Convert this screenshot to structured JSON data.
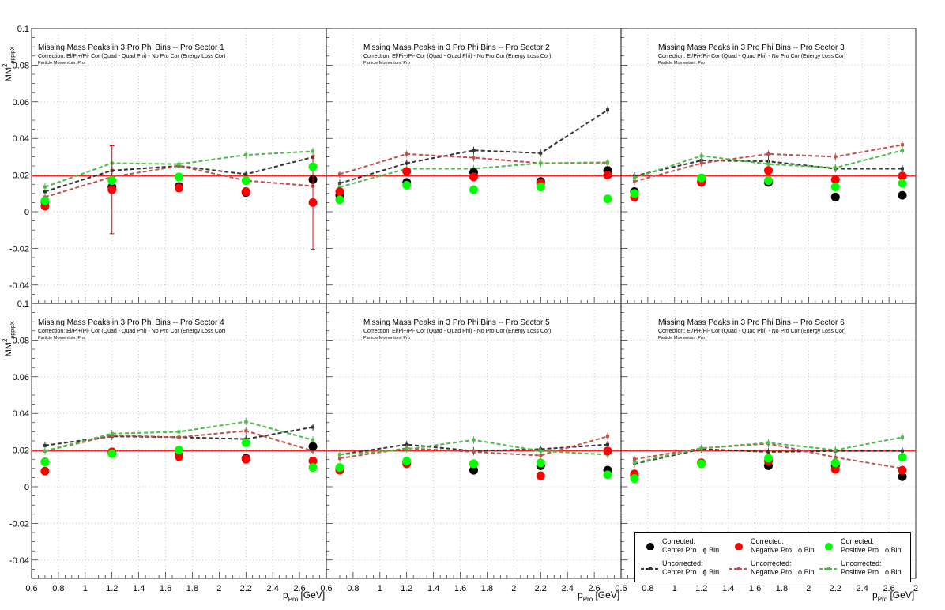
{
  "chart_data": {
    "type": "scatter",
    "panel_title_prefix": "Missing Mass Peaks in 3 Pro Phi Bins -- Pro Sector ",
    "subtitle1": "Correction: El/Pi+/Pi- Cor (Quad - Quad Phi) - No Pro Cor (Energy Loss Cor)",
    "subtitle2": "Particle Momentum: Pro",
    "ylabel_main": "MM",
    "ylabel_sup": "2",
    "ylabel_sub": "eppipX",
    "xlabel_main": "p",
    "xlabel_sub": "Pro",
    "xlabel_unit": "[GeV]",
    "xlim": [
      0.6,
      2.8
    ],
    "ylim": [
      -0.05,
      0.1
    ],
    "y_ticks": [
      "0.08",
      "0.06",
      "0.04",
      "0.02",
      "0",
      "-0.02",
      "-0.04"
    ],
    "y_top_tick": "0.1",
    "x_ticks": [
      "0.6",
      "0.8",
      "1",
      "1.2",
      "1.4",
      "1.6",
      "1.8",
      "2",
      "2.2",
      "2.4",
      "2.6"
    ],
    "x_ticks_last": [
      "0.6",
      "0.8",
      "1",
      "1.2",
      "1.4",
      "1.6",
      "1.8",
      "2",
      "2.2",
      "2.4",
      "2.6",
      "2"
    ],
    "reference_line": 0.0195,
    "x_points": [
      0.7,
      1.2,
      1.7,
      2.2,
      2.7
    ],
    "colors": {
      "center": "#000000",
      "negative": "#ff0000",
      "positive": "#00ff00",
      "center_unc": "#333333",
      "negative_unc": "#c0504d",
      "positive_unc": "#4cbb4c",
      "refline": "#ff0000"
    },
    "panels": [
      {
        "sector": "1",
        "corrected": {
          "center": [
            0.0055,
            0.0135,
            0.0138,
            0.0105,
            0.0175
          ],
          "negative": [
            0.003,
            0.012,
            0.013,
            0.011,
            0.005
          ],
          "positive": [
            0.006,
            0.017,
            0.019,
            0.017,
            0.0245
          ]
        },
        "corrected_err": {
          "negative": [
            0.001,
            0.024,
            0.002,
            0.002,
            0.0255
          ]
        },
        "uncorrected": {
          "center": [
            0.011,
            0.0225,
            0.025,
            0.0205,
            0.0298
          ],
          "negative": [
            0.008,
            0.019,
            0.025,
            0.017,
            0.014
          ],
          "positive": [
            0.0135,
            0.0265,
            0.026,
            0.031,
            0.033
          ]
        }
      },
      {
        "sector": "2",
        "corrected": {
          "center": [
            0.009,
            0.016,
            0.0215,
            0.0165,
            0.0225
          ],
          "negative": [
            0.011,
            0.022,
            0.019,
            0.0155,
            0.02
          ],
          "positive": [
            0.0065,
            0.0145,
            0.012,
            0.0135,
            0.007
          ]
        },
        "corrected_err": {
          "negative": [
            0.001,
            0.001,
            0.001,
            0.001,
            0.001
          ]
        },
        "uncorrected": {
          "center": [
            0.0155,
            0.0265,
            0.0335,
            0.032,
            0.0555
          ],
          "negative": [
            0.0205,
            0.0315,
            0.0295,
            0.0265,
            0.0265
          ],
          "positive": [
            0.0135,
            0.0235,
            0.0235,
            0.0265,
            0.027
          ]
        }
      },
      {
        "sector": "3",
        "corrected": {
          "center": [
            0.011,
            0.0165,
            0.016,
            0.008,
            0.009
          ],
          "negative": [
            0.008,
            0.016,
            0.0225,
            0.0175,
            0.0195
          ],
          "positive": [
            0.01,
            0.0185,
            0.017,
            0.0135,
            0.0155
          ]
        },
        "corrected_err": {
          "negative": [
            0.001,
            0.001,
            0.001,
            0.001,
            0.001
          ]
        },
        "uncorrected": {
          "center": [
            0.0195,
            0.028,
            0.0275,
            0.0235,
            0.0235
          ],
          "negative": [
            0.0165,
            0.0265,
            0.0315,
            0.03,
            0.0365
          ],
          "positive": [
            0.0185,
            0.0305,
            0.026,
            0.024,
            0.0335
          ]
        }
      },
      {
        "sector": "4",
        "corrected": {
          "center": [
            0.0135,
            0.0185,
            0.0175,
            0.0155,
            0.022
          ],
          "negative": [
            0.0085,
            0.019,
            0.0165,
            0.015,
            0.014
          ],
          "positive": [
            0.0135,
            0.018,
            0.02,
            0.024,
            0.0105
          ]
        },
        "corrected_err": {
          "negative": [
            0.001,
            0.001,
            0.002,
            0.002,
            0.002
          ]
        },
        "uncorrected": {
          "center": [
            0.0225,
            0.0275,
            0.027,
            0.026,
            0.0325
          ],
          "negative": [
            0.0195,
            0.028,
            0.027,
            0.0305,
            0.0195
          ],
          "positive": [
            0.0195,
            0.029,
            0.03,
            0.0355,
            0.0255
          ]
        }
      },
      {
        "sector": "5",
        "corrected": {
          "center": [
            0.01,
            0.0135,
            0.009,
            0.0115,
            0.009
          ],
          "negative": [
            0.009,
            0.0125,
            0.0125,
            0.006,
            0.0195
          ],
          "positive": [
            0.0105,
            0.014,
            0.0125,
            0.013,
            0.0065
          ]
        },
        "corrected_err": {
          "negative": [
            0.001,
            0.001,
            0.001,
            0.002,
            0.001
          ]
        },
        "uncorrected": {
          "center": [
            0.0175,
            0.023,
            0.0195,
            0.0205,
            0.023
          ],
          "negative": [
            0.0155,
            0.021,
            0.019,
            0.017,
            0.0275
          ],
          "positive": [
            0.0175,
            0.0205,
            0.0255,
            0.0195,
            0.0175
          ]
        }
      },
      {
        "sector": "6",
        "corrected": {
          "center": [
            0.006,
            0.013,
            0.0115,
            0.0115,
            0.0055
          ],
          "negative": [
            0.007,
            0.013,
            0.014,
            0.0095,
            0.009
          ],
          "positive": [
            0.0045,
            0.0125,
            0.0155,
            0.013,
            0.016
          ]
        },
        "corrected_err": {
          "negative": [
            0.001,
            0.001,
            0.001,
            0.002,
            0.001
          ]
        },
        "uncorrected": {
          "center": [
            0.0125,
            0.0205,
            0.019,
            0.0195,
            0.0195
          ],
          "negative": [
            0.015,
            0.021,
            0.0235,
            0.016,
            0.01
          ],
          "positive": [
            0.013,
            0.021,
            0.024,
            0.02,
            0.027
          ]
        }
      }
    ],
    "legend": {
      "corrected_label": "Corrected:",
      "uncorrected_label": "Uncorrected:",
      "center_bin": "Center Pro",
      "negative_bin": "Negative Pro",
      "positive_bin": "Positive Pro",
      "phi_bin": "ϕ Bin"
    }
  }
}
